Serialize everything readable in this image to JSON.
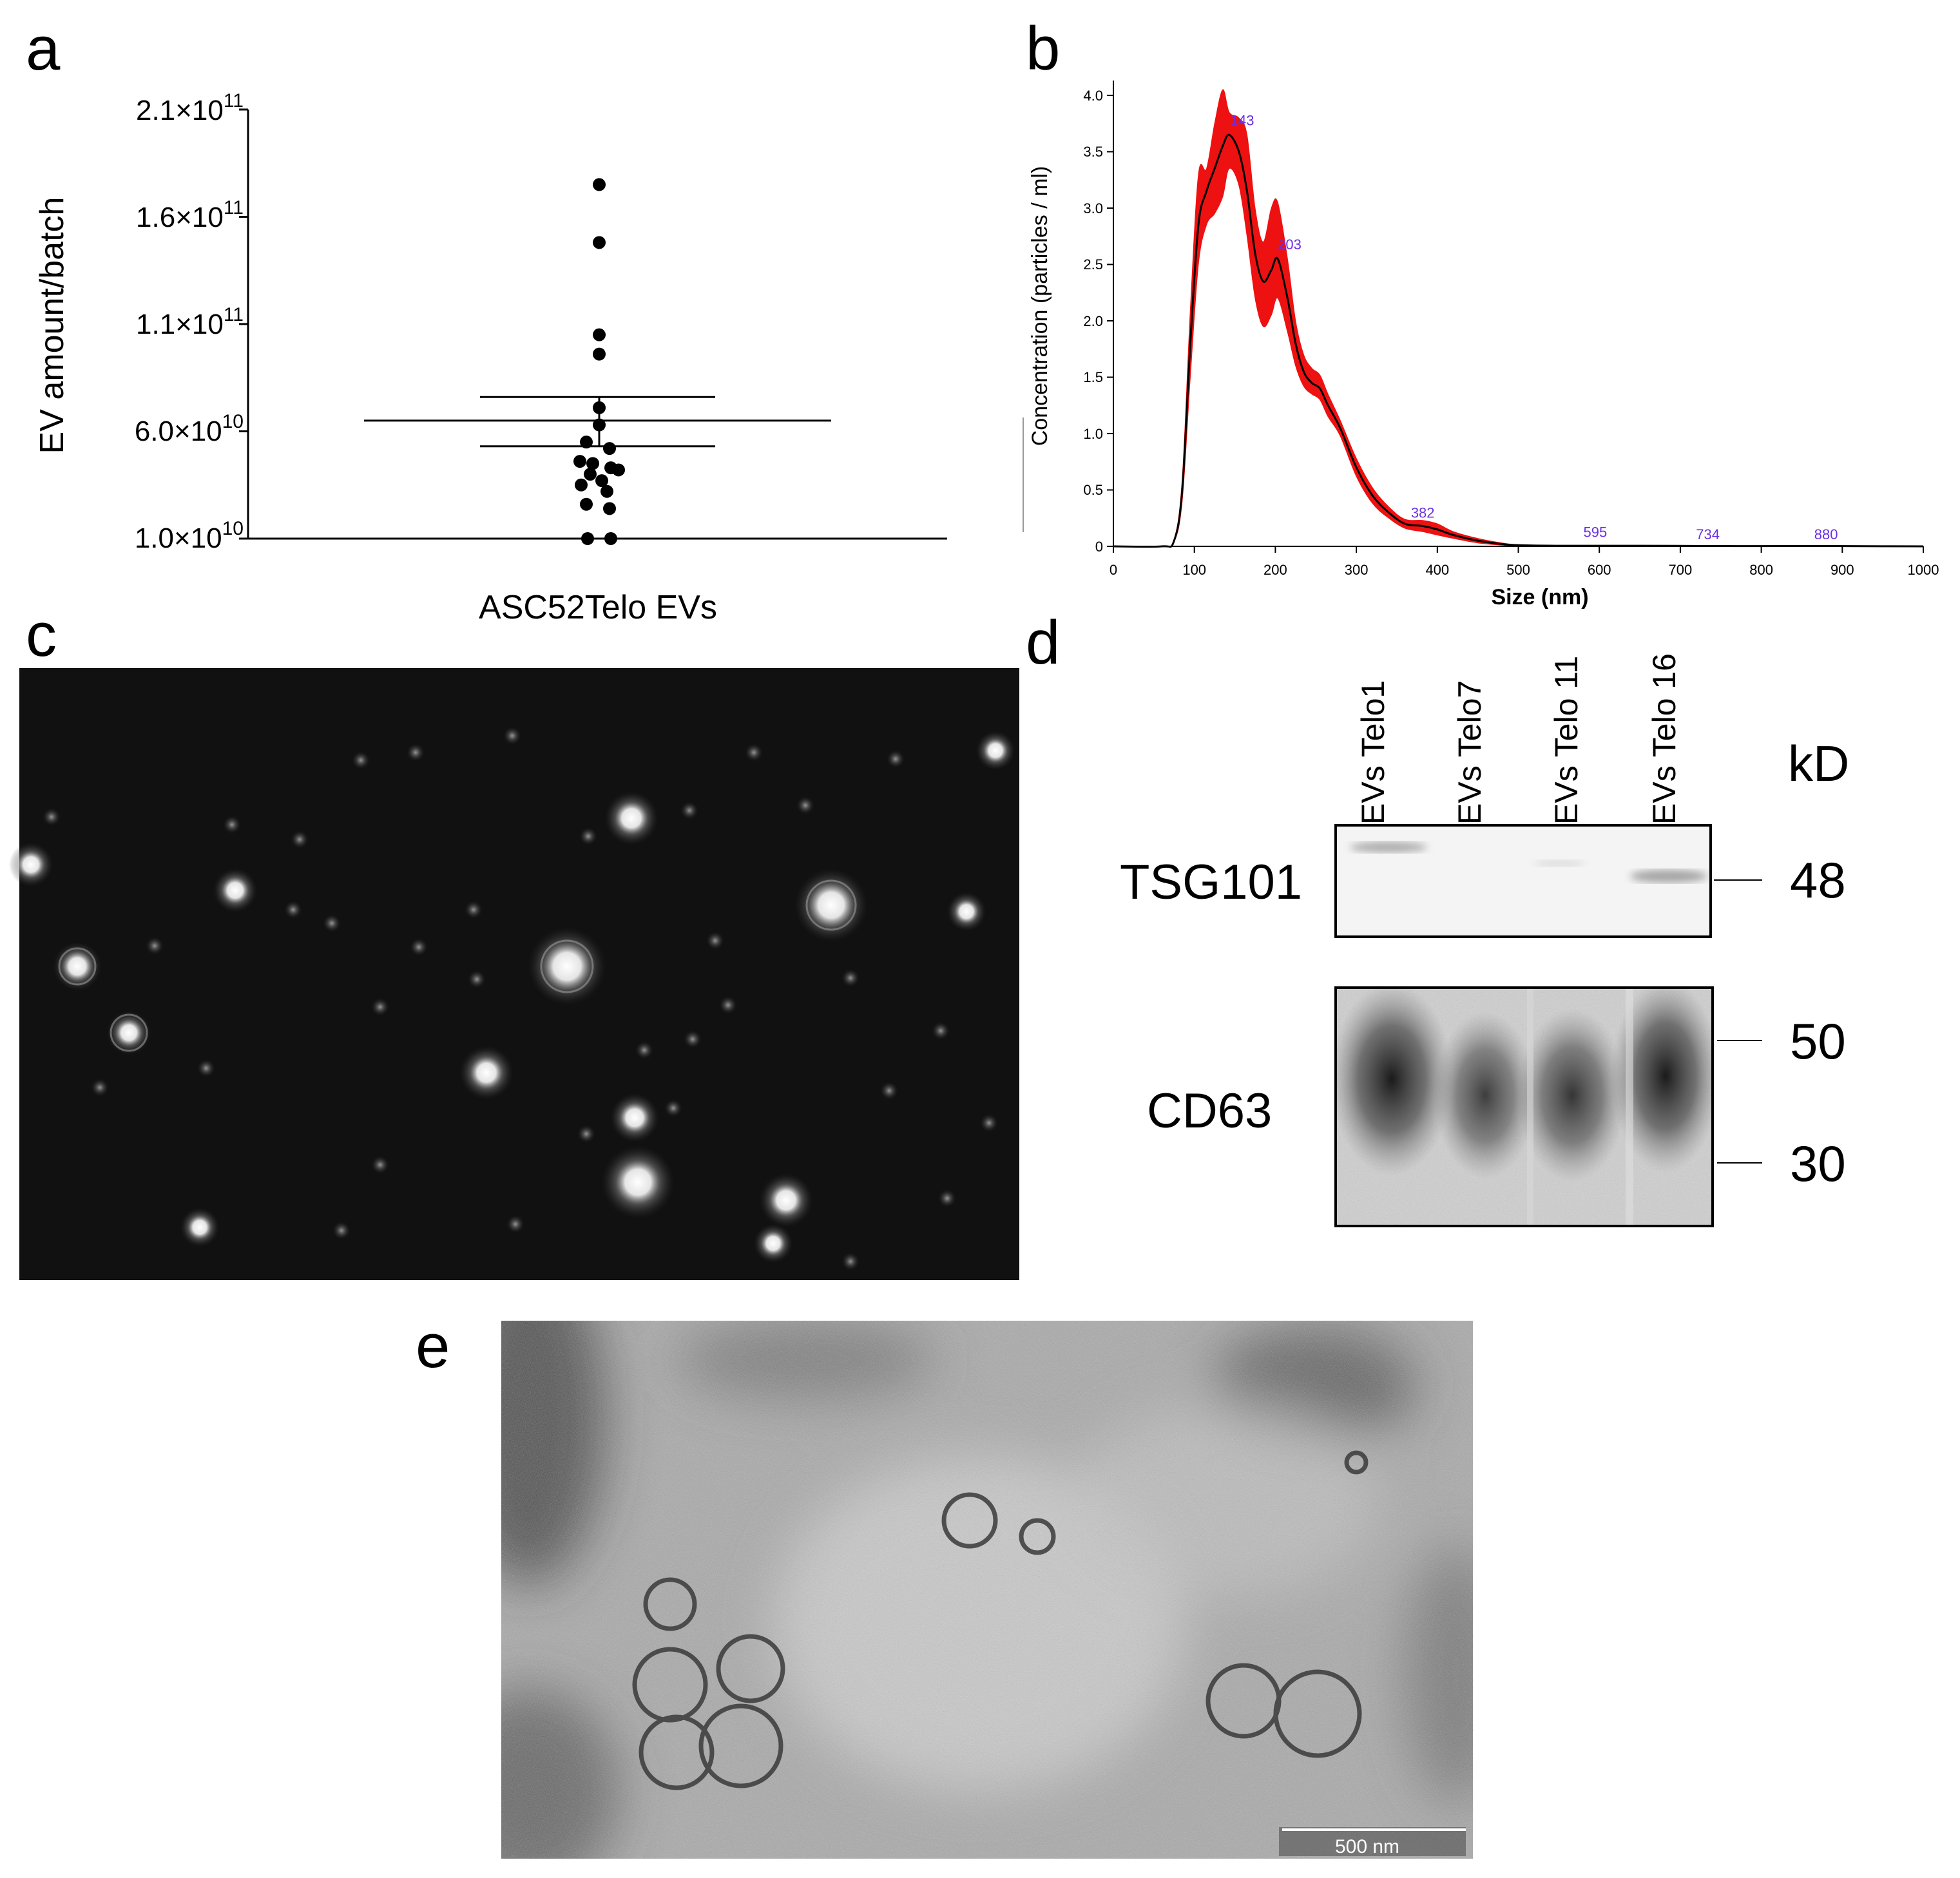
{
  "panels": {
    "a": {
      "label": "a",
      "chart_data": {
        "type": "scatter",
        "title": "",
        "xlabel": "ASC52Telo EVs",
        "ylabel": "EV amount/batch",
        "ylim": [
          10000000000.0,
          210000000000.0
        ],
        "yticks": [
          {
            "base": "2.1×10",
            "exp": "11",
            "value": 210000000000.0
          },
          {
            "base": "1.6×10",
            "exp": "11",
            "value": 160000000000.0
          },
          {
            "base": "1.1×10",
            "exp": "11",
            "value": 110000000000.0
          },
          {
            "base": "6.0×10",
            "exp": "10",
            "value": 60000000000.0
          },
          {
            "base": "1.0×10",
            "exp": "10",
            "value": 10000000000.0
          }
        ],
        "values": [
          175000000000.0,
          148000000000.0,
          105000000000.0,
          96000000000.0,
          71000000000.0,
          63000000000.0,
          55000000000.0,
          52000000000.0,
          46000000000.0,
          45000000000.0,
          43000000000.0,
          42000000000.0,
          40000000000.0,
          37000000000.0,
          35000000000.0,
          32000000000.0,
          26000000000.0,
          24000000000.0,
          10000000000.0,
          10000000000.0
        ],
        "mean": 65000000000.0,
        "sem_upper": 76000000000.0,
        "sem_lower": 53000000000.0,
        "grid": false,
        "legend": "none"
      }
    },
    "b": {
      "label": "b",
      "chart_data": {
        "type": "line",
        "title": "",
        "xlabel": "Size (nm)",
        "ylabel": "Concentration (particles / ml)",
        "xlim": [
          0,
          1000
        ],
        "ylim": [
          0,
          4.0
        ],
        "xticks": [
          "0",
          "100",
          "200",
          "300",
          "400",
          "500",
          "600",
          "700",
          "800",
          "900",
          "1000"
        ],
        "yticks": [
          "0",
          "0.5",
          "1.0",
          "1.5",
          "2.0",
          "2.5",
          "3.0",
          "3.5",
          "4.0"
        ],
        "x": [
          0,
          60,
          75,
          85,
          95,
          105,
          115,
          125,
          135,
          143,
          155,
          165,
          175,
          185,
          195,
          203,
          215,
          225,
          235,
          245,
          255,
          265,
          280,
          300,
          320,
          340,
          360,
          382,
          400,
          420,
          450,
          480,
          500,
          550,
          595,
          650,
          734,
          800,
          880,
          950,
          1000
        ],
        "mean": [
          0,
          0,
          0.05,
          0.5,
          1.8,
          2.85,
          3.15,
          3.35,
          3.55,
          3.65,
          3.5,
          3.15,
          2.6,
          2.35,
          2.45,
          2.55,
          2.2,
          1.8,
          1.55,
          1.45,
          1.4,
          1.25,
          1.05,
          0.7,
          0.45,
          0.3,
          0.2,
          0.18,
          0.15,
          0.1,
          0.05,
          0.02,
          0.01,
          0.005,
          0.005,
          0.005,
          0.003,
          0.002,
          0.003,
          0.001,
          0
        ],
        "band_upper": [
          0,
          0,
          0.06,
          0.6,
          2.1,
          3.3,
          3.35,
          3.75,
          4.05,
          3.85,
          3.8,
          3.65,
          3.0,
          2.7,
          3.0,
          3.05,
          2.55,
          2.0,
          1.7,
          1.58,
          1.52,
          1.35,
          1.12,
          0.78,
          0.52,
          0.35,
          0.24,
          0.23,
          0.2,
          0.13,
          0.07,
          0.03,
          0.015,
          0.008,
          0.008,
          0.007,
          0.005,
          0.004,
          0.005,
          0.002,
          0
        ],
        "band_lower": [
          0,
          0,
          0.04,
          0.4,
          1.5,
          2.5,
          2.85,
          2.95,
          3.1,
          3.35,
          3.2,
          2.75,
          2.2,
          1.95,
          2.05,
          2.2,
          1.9,
          1.6,
          1.42,
          1.35,
          1.3,
          1.15,
          0.98,
          0.62,
          0.38,
          0.25,
          0.16,
          0.13,
          0.1,
          0.07,
          0.03,
          0.01,
          0.005,
          0.002,
          0.002,
          0.003,
          0.001,
          0.001,
          0.001,
          0,
          0
        ],
        "peak_labels": [
          {
            "text": "143",
            "x": 143,
            "y": 3.7
          },
          {
            "text": "203",
            "x": 203,
            "y": 2.6
          },
          {
            "text": "382",
            "x": 382,
            "y": 0.22
          },
          {
            "text": "595",
            "x": 595,
            "y": 0.05
          },
          {
            "text": "734",
            "x": 734,
            "y": 0.03
          },
          {
            "text": "880",
            "x": 880,
            "y": 0.03
          }
        ],
        "colors": {
          "line": "#000000",
          "band": "#ee1111",
          "peak_label": "#6a2fe8"
        },
        "grid": false,
        "legend": "none"
      }
    },
    "c": {
      "label": "c",
      "kind": "nanoparticle tracking micrograph"
    },
    "d": {
      "label": "d",
      "lanes": [
        "EVs Telo1",
        "EVs Telo7",
        "EVs Telo 11",
        "EVs Telo 16"
      ],
      "blots": [
        {
          "name": "TSG101",
          "markers": [
            "48"
          ]
        },
        {
          "name": "CD63",
          "markers": [
            "50",
            "30"
          ]
        }
      ],
      "unit": "kD"
    },
    "e": {
      "label": "e",
      "scale_bar": "500 nm"
    }
  }
}
